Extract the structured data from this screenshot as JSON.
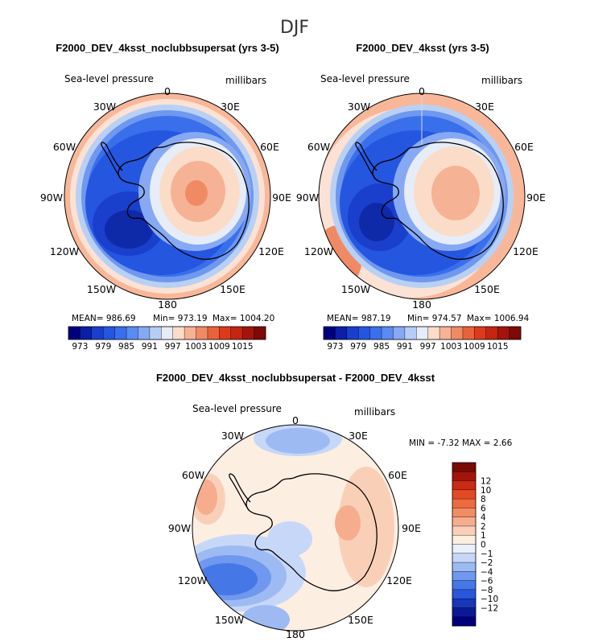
{
  "figure": {
    "title": "DJF",
    "panels": [
      {
        "title": "F2000_DEV_4ksst_noclubbsupersat (yrs 3-5)",
        "left_label": "Sea-level pressure",
        "right_label": "millibars",
        "stats": {
          "mean": "MEAN= 986.69",
          "min": "Min= 973.19",
          "max": "Max= 1004.20"
        }
      },
      {
        "title": "F2000_DEV_4ksst (yrs 3-5)",
        "left_label": "Sea-level pressure",
        "right_label": "millibars",
        "stats": {
          "mean": "MEAN= 987.19",
          "min": "Min= 974.57",
          "max": "Max= 1006.94"
        }
      },
      {
        "title": "F2000_DEV_4ksst_noclubbsupersat - F2000_DEV_4ksst",
        "left_label": "Sea-level pressure",
        "right_label": "millibars",
        "stats": {
          "minmax": "MIN =   -7.32 MAX =    2.66"
        }
      }
    ],
    "longitude_labels": [
      "0",
      "30E",
      "60E",
      "90E",
      "120E",
      "150E",
      "180",
      "150W",
      "120W",
      "90W",
      "60W",
      "30W"
    ]
  },
  "colorbars": {
    "absolute": {
      "colors": [
        "#00007f",
        "#0a1fa6",
        "#1a3fcc",
        "#2456e0",
        "#3a6fec",
        "#5a8bf2",
        "#87a9f3",
        "#b6cdf5",
        "#e6edf9",
        "#fbdcc8",
        "#f6b294",
        "#f08a65",
        "#e9623c",
        "#dd3a1c",
        "#c32612",
        "#a3150c",
        "#7d0a05"
      ],
      "tick_labels": [
        "973",
        "979",
        "985",
        "991",
        "997",
        "1003",
        "1009",
        "1015"
      ]
    },
    "difference": {
      "colors_top_to_bottom": [
        "#7a0a06",
        "#a3150c",
        "#cc2a12",
        "#e24a24",
        "#ee6a40",
        "#f38c64",
        "#f6ad8e",
        "#f9d0b7",
        "#fdeee2",
        "#eaf0fb",
        "#c7d7f7",
        "#9dbaf3",
        "#6f98ee",
        "#4677e6",
        "#2a57dc",
        "#1836b8",
        "#0a1a96",
        "#00007a"
      ],
      "tick_labels": [
        "12",
        "10",
        "8",
        "6",
        "4",
        "2",
        "1",
        "0",
        "−1",
        "−2",
        "−4",
        "−6",
        "−8",
        "−10",
        "−12"
      ]
    }
  },
  "chart_data": [
    {
      "type": "heatmap",
      "title": "F2000_DEV_4ksst_noclubbsupersat (yrs 3-5)",
      "variable": "Sea-level pressure",
      "units": "millibars",
      "projection": "south polar stereographic",
      "mean": 986.69,
      "min": 973.19,
      "max": 1004.2,
      "levels": [
        973,
        979,
        985,
        991,
        997,
        1003,
        1009,
        1015
      ]
    },
    {
      "type": "heatmap",
      "title": "F2000_DEV_4ksst (yrs 3-5)",
      "variable": "Sea-level pressure",
      "units": "millibars",
      "projection": "south polar stereographic",
      "mean": 987.19,
      "min": 974.57,
      "max": 1006.94,
      "levels": [
        973,
        979,
        985,
        991,
        997,
        1003,
        1009,
        1015
      ]
    },
    {
      "type": "heatmap",
      "title": "F2000_DEV_4ksst_noclubbsupersat - F2000_DEV_4ksst",
      "variable": "Sea-level pressure",
      "units": "millibars",
      "projection": "south polar stereographic",
      "min": -7.32,
      "max": 2.66,
      "levels": [
        -12,
        -10,
        -8,
        -6,
        -4,
        -2,
        -1,
        0,
        1,
        2,
        4,
        6,
        8,
        10,
        12
      ]
    }
  ]
}
